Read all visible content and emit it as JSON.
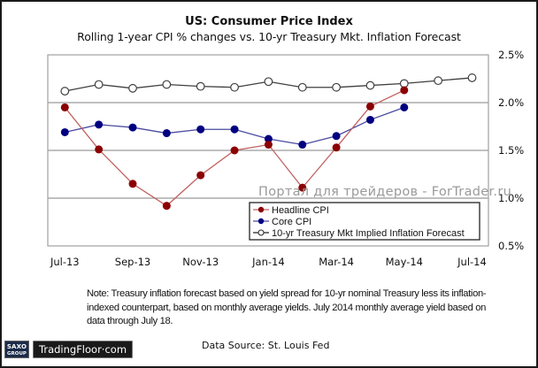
{
  "chart_data": {
    "type": "line",
    "title": "US: Consumer Price Index",
    "subtitle": "Rolling 1-year CPI % changes vs. 10-yr Treasury Mkt. Inflation Forecast",
    "xlabel": "",
    "ylabel": "",
    "x": [
      "Jul-13",
      "Aug-13",
      "Sep-13",
      "Oct-13",
      "Nov-13",
      "Dec-13",
      "Jan-14",
      "Feb-14",
      "Mar-14",
      "Apr-14",
      "May-14",
      "Jun-14",
      "Jul-14"
    ],
    "x_tick_labels": [
      "Jul-13",
      "Sep-13",
      "Nov-13",
      "Jan-14",
      "Mar-14",
      "May-14",
      "Jul-14"
    ],
    "y_tick_labels": [
      "2.5%",
      "2.0%",
      "1.5%",
      "1.0%",
      "0.5%"
    ],
    "y_ticks": [
      2.5,
      2.0,
      1.5,
      1.0,
      0.5
    ],
    "ylim": [
      0.5,
      2.5
    ],
    "y_axis_side": "right",
    "grid": true,
    "legend_position": "bottom-right",
    "series": [
      {
        "name": "Headline CPI",
        "marker": "filled-circle",
        "color": "#8b0000",
        "line_color": "#c06060",
        "values": [
          1.95,
          1.51,
          1.15,
          0.92,
          1.24,
          1.5,
          1.56,
          1.11,
          1.53,
          1.96,
          2.13,
          null,
          null
        ]
      },
      {
        "name": "Core CPI",
        "marker": "filled-circle",
        "color": "#000080",
        "line_color": "#4a4aa0",
        "values": [
          1.69,
          1.77,
          1.74,
          1.68,
          1.72,
          1.72,
          1.62,
          1.56,
          1.65,
          1.82,
          1.95,
          null,
          null
        ]
      },
      {
        "name": "10-yr Treasury Mkt Implied Inflation Forecast",
        "marker": "open-circle",
        "color": "#404040",
        "line_color": "#404040",
        "values": [
          2.12,
          2.19,
          2.15,
          2.19,
          2.17,
          2.16,
          2.22,
          2.16,
          2.16,
          2.18,
          2.2,
          2.23,
          2.26
        ]
      }
    ]
  },
  "note": "Note: Treasury inflation forecast based on yield spread for 10-yr nominal Treasury less its inflation-indexed counterpart, based on monthly average yields. July 2014 monthly average yield based on data through July 18.",
  "source": "Data Source:  St. Louis Fed",
  "watermark": "Портал для трейдеров - ForTrader.ru",
  "logo": {
    "saxo_line1": "SAXO",
    "saxo_line2": "GROUP",
    "brand": "TradingFloor·com"
  }
}
